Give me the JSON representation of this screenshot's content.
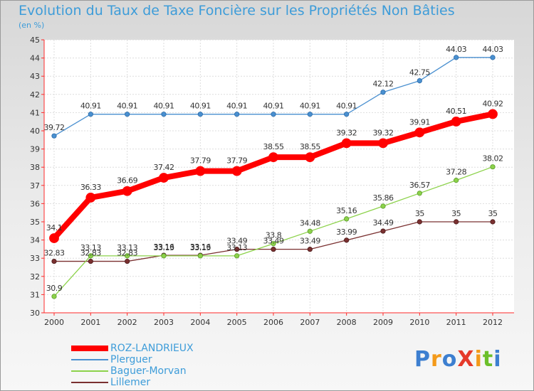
{
  "title": "Evolution du Taux de Taxe Foncière sur les Propriétés Non Bâties",
  "subtitle": "(en %)",
  "logo": {
    "text": "ProXiti",
    "letters": [
      {
        "ch": "P",
        "color": "#3d7fd0"
      },
      {
        "ch": "r",
        "color": "#f39a1a"
      },
      {
        "ch": "o",
        "color": "#3d7fd0"
      },
      {
        "ch": "X",
        "color": "#e53a2a"
      },
      {
        "ch": "i",
        "color": "#f39a1a"
      },
      {
        "ch": "t",
        "color": "#6cbf2a"
      },
      {
        "ch": "i",
        "color": "#3d7fd0"
      }
    ]
  },
  "chart_data": {
    "type": "line",
    "x": [
      "2000",
      "2001",
      "2002",
      "2003",
      "2004",
      "2005",
      "2006",
      "2007",
      "2008",
      "2009",
      "2010",
      "2011",
      "2012"
    ],
    "ylim": [
      30,
      45
    ],
    "yticks": [
      30,
      31,
      32,
      33,
      34,
      35,
      36,
      37,
      38,
      39,
      40,
      41,
      42,
      43,
      44,
      45
    ],
    "grid": true,
    "legend_position": "bottom-left",
    "series": [
      {
        "name": "ROZ-LANDRIEUX",
        "color": "#ff0000",
        "values": [
          34.1,
          36.33,
          36.69,
          37.42,
          37.79,
          37.79,
          38.55,
          38.55,
          39.32,
          39.32,
          39.91,
          40.51,
          40.92
        ],
        "labels": [
          "34.1",
          "36.33",
          "36.69",
          "37.42",
          "37.79",
          "37.79",
          "38.55",
          "38.55",
          "39.32",
          "39.32",
          "39.91",
          "40.51",
          "40.92"
        ]
      },
      {
        "name": "Plerguer",
        "color": "#4a90d0",
        "values": [
          39.72,
          40.91,
          40.91,
          40.91,
          40.91,
          40.91,
          40.91,
          40.91,
          40.91,
          42.12,
          42.75,
          44.03,
          44.03
        ],
        "labels": [
          "39.72",
          "40.91",
          "40.91",
          "40.91",
          "40.91",
          "40.91",
          "40.91",
          "40.91",
          "40.91",
          "42.12",
          "42.75",
          "44.03",
          "44.03"
        ]
      },
      {
        "name": "Baguer-Morvan",
        "color": "#8cd24a",
        "values": [
          30.9,
          33.13,
          33.13,
          33.13,
          33.13,
          33.13,
          33.8,
          34.48,
          35.16,
          35.86,
          36.57,
          37.28,
          38.02
        ],
        "labels": [
          "30.9",
          "33.13",
          "33.13",
          "33.13",
          "33.13",
          "33.13",
          "33.8",
          "34.48",
          "35.16",
          "35.86",
          "36.57",
          "37.28",
          "38.02"
        ]
      },
      {
        "name": "Lillemer",
        "color": "#7a3030",
        "values": [
          32.83,
          32.83,
          32.83,
          33.16,
          33.16,
          33.49,
          33.49,
          33.49,
          33.99,
          34.49,
          35,
          35,
          35
        ],
        "labels": [
          "32.83",
          "32.83",
          "32.83",
          "33.16",
          "33.16",
          "33.49",
          "33.49",
          "33.49",
          "33.99",
          "34.49",
          "35",
          "35",
          "35"
        ]
      }
    ]
  }
}
